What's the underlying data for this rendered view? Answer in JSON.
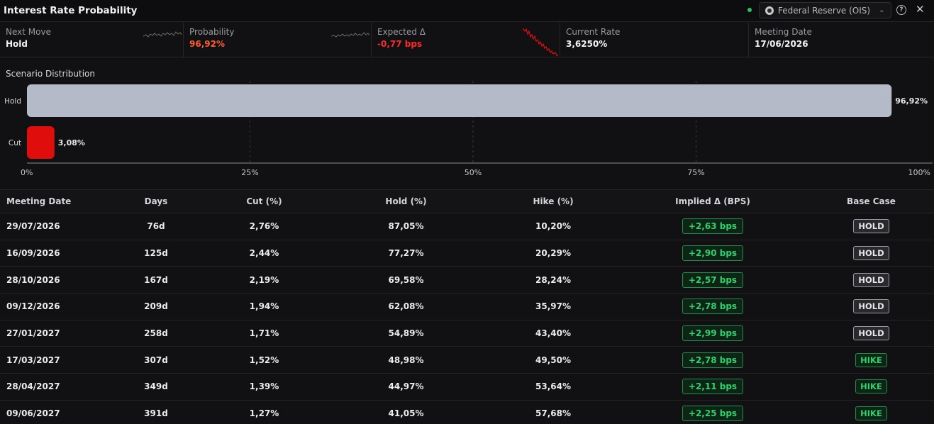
{
  "header": {
    "title": "Interest Rate Probability",
    "source": "Federal Reserve (OIS)",
    "help_glyph": "?",
    "close_glyph": "✕"
  },
  "metrics": [
    {
      "label": "Next Move",
      "value": "Hold",
      "color": "#f2f2f4",
      "sparkline": "gray"
    },
    {
      "label": "Probability",
      "value": "96,92%",
      "color": "#ff5a2a",
      "sparkline": "gray"
    },
    {
      "label": "Expected Δ",
      "value": "-0,77 bps",
      "color": "#ff2a2a",
      "sparkline": "red"
    },
    {
      "label": "Current Rate",
      "value": "3,6250%",
      "color": "#f2f2f4",
      "sparkline": "none"
    },
    {
      "label": "Meeting Date",
      "value": "17/06/2026",
      "color": "#f2f2f4",
      "sparkline": "none"
    }
  ],
  "scenario": {
    "title": "Scenario Distribution",
    "chart_data": {
      "type": "bar",
      "orientation": "horizontal",
      "categories": [
        "Hold",
        "Cut"
      ],
      "values": [
        96.92,
        3.08
      ],
      "value_labels": [
        "96,92%",
        "3,08%"
      ],
      "colors": [
        "#b4bac8",
        "#e00d0d"
      ],
      "xlim": [
        0,
        100
      ],
      "x_ticks": [
        0,
        25,
        50,
        75,
        100
      ],
      "x_tick_labels": [
        "0%",
        "25%",
        "50%",
        "75%",
        "100%"
      ],
      "grid": true
    }
  },
  "table": {
    "columns": [
      "Meeting Date",
      "Days",
      "Cut (%)",
      "Hold (%)",
      "Hike (%)",
      "Implied Δ (BPS)",
      "Base Case"
    ],
    "rows": [
      {
        "date": "29/07/2026",
        "days": "76d",
        "cut": "2,76%",
        "hold": "87,05%",
        "hike": "10,20%",
        "implied": "+2,63 bps",
        "base": "HOLD"
      },
      {
        "date": "16/09/2026",
        "days": "125d",
        "cut": "2,44%",
        "hold": "77,27%",
        "hike": "20,29%",
        "implied": "+2,90 bps",
        "base": "HOLD"
      },
      {
        "date": "28/10/2026",
        "days": "167d",
        "cut": "2,19%",
        "hold": "69,58%",
        "hike": "28,24%",
        "implied": "+2,57 bps",
        "base": "HOLD"
      },
      {
        "date": "09/12/2026",
        "days": "209d",
        "cut": "1,94%",
        "hold": "62,08%",
        "hike": "35,97%",
        "implied": "+2,78 bps",
        "base": "HOLD"
      },
      {
        "date": "27/01/2027",
        "days": "258d",
        "cut": "1,71%",
        "hold": "54,89%",
        "hike": "43,40%",
        "implied": "+2,99 bps",
        "base": "HOLD"
      },
      {
        "date": "17/03/2027",
        "days": "307d",
        "cut": "1,52%",
        "hold": "48,98%",
        "hike": "49,50%",
        "implied": "+2,78 bps",
        "base": "HIKE"
      },
      {
        "date": "28/04/2027",
        "days": "349d",
        "cut": "1,39%",
        "hold": "44,97%",
        "hike": "53,64%",
        "implied": "+2,11 bps",
        "base": "HIKE"
      },
      {
        "date": "09/06/2027",
        "days": "391d",
        "cut": "1,27%",
        "hold": "41,05%",
        "hike": "57,68%",
        "implied": "+2,25 bps",
        "base": "HIKE"
      }
    ]
  }
}
